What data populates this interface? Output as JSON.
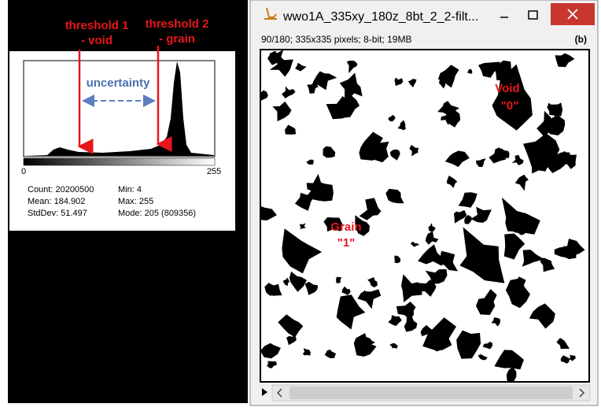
{
  "annotations": {
    "threshold_1": [
      "threshold 1",
      "- void"
    ],
    "threshold_2": [
      "threshold 2",
      "- grain"
    ],
    "uncertainty": "uncertainty",
    "void": [
      "Void",
      "\"0\""
    ],
    "grain": [
      "Grain",
      "\"1\""
    ]
  },
  "histogram": {
    "axis_labels": [
      0,
      255
    ],
    "stats": [
      [
        "Count: 20200500",
        "Min: 4"
      ],
      [
        "Mean: 184.902",
        "Max: 255"
      ],
      [
        "StdDev: 51.497",
        "Mode: 205 (809356)"
      ]
    ]
  },
  "window": {
    "title": "wwo1A_335xy_180z_8bt_2_2-filt...",
    "info": "90/180; 335x335 pixels; 8-bit; 19MB",
    "panel_label": "(b)"
  }
}
